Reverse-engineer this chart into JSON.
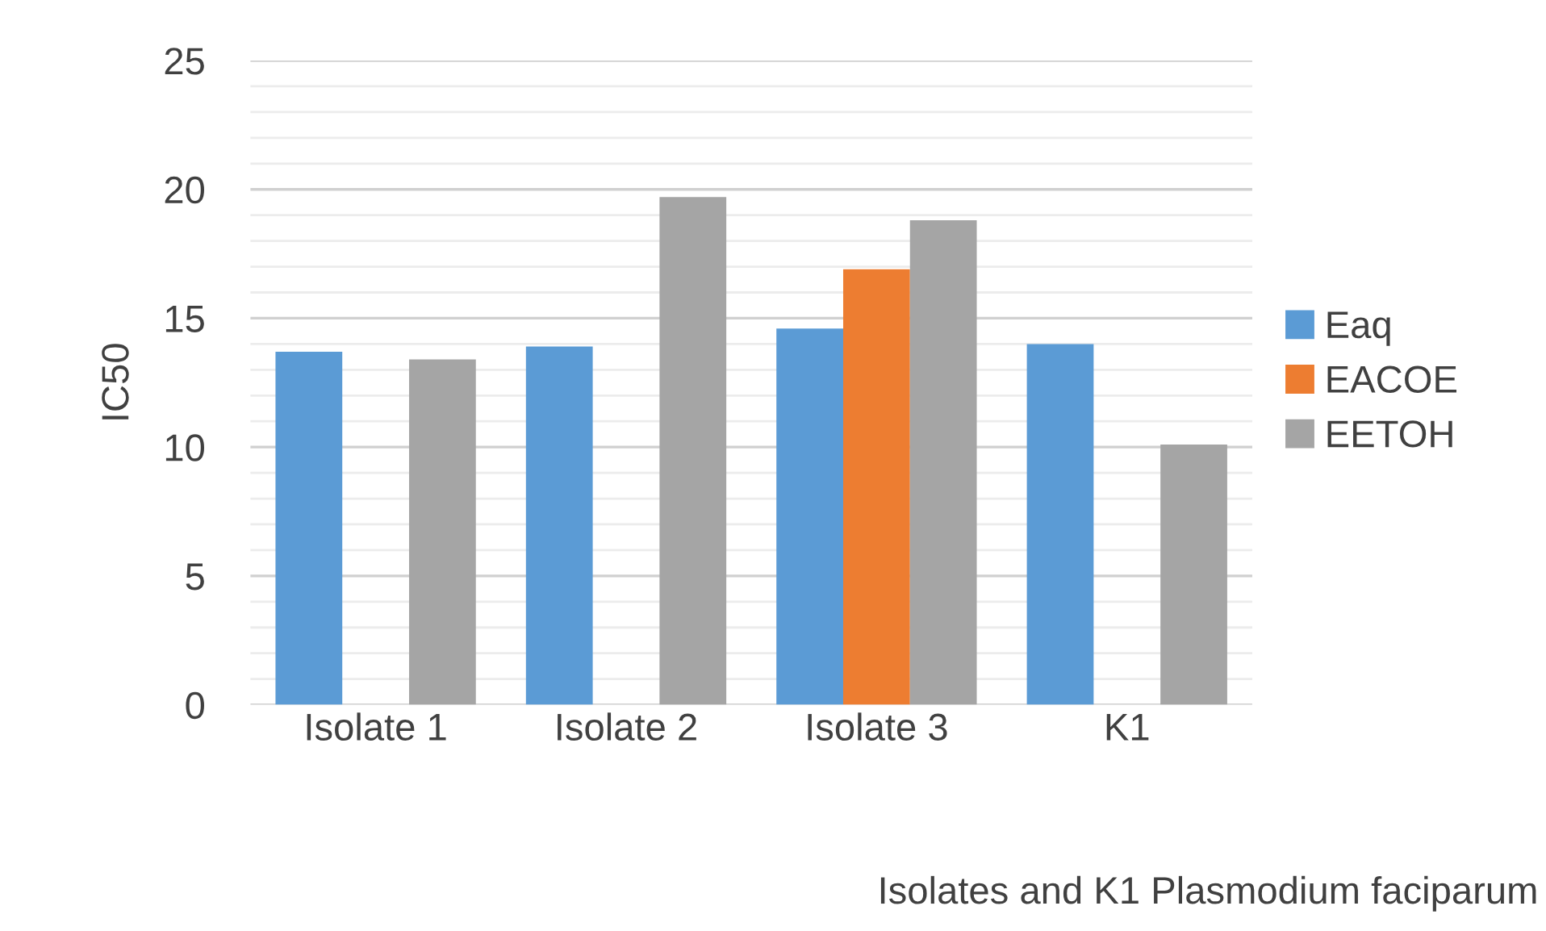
{
  "chart_data": {
    "type": "bar",
    "ylabel": "IC50",
    "xlabel": "Isolates and K1 Plasmodium faciparum",
    "categories": [
      "Isolate 1",
      "Isolate 2",
      "Isolate 3",
      "K1"
    ],
    "series": [
      {
        "name": "Eaq",
        "color": "#5b9bd5",
        "values": [
          13.7,
          13.9,
          14.6,
          14.0
        ]
      },
      {
        "name": "EACOE",
        "color": "#ed7d31",
        "values": [
          null,
          null,
          16.9,
          null
        ]
      },
      {
        "name": "EETOH",
        "color": "#a5a5a5",
        "values": [
          13.4,
          19.7,
          18.8,
          10.1
        ]
      }
    ],
    "ylim": [
      0,
      25
    ],
    "yticks": [
      0,
      5,
      10,
      15,
      20,
      25
    ],
    "grid": "y",
    "legend": "right"
  }
}
